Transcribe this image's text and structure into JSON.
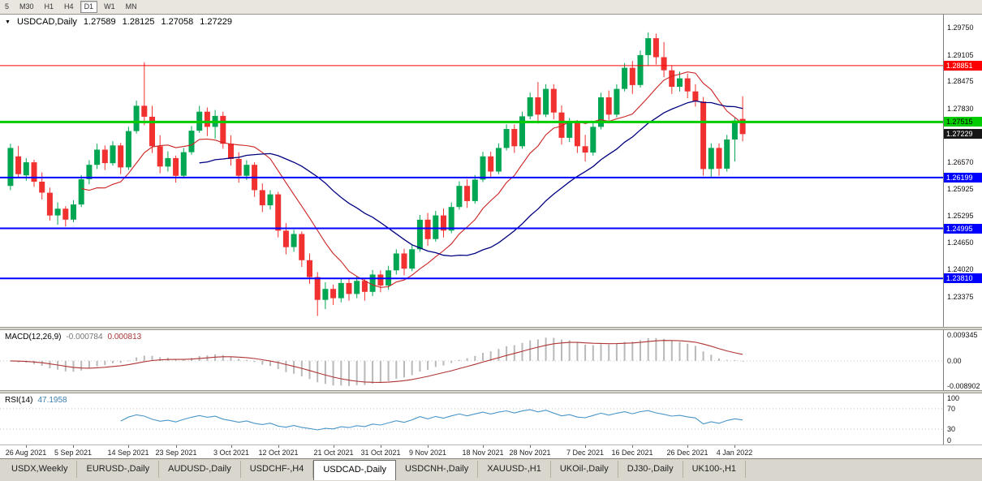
{
  "toolbar": {
    "timeframes": [
      "5",
      "M30",
      "H1",
      "H4",
      "D1",
      "W1",
      "MN"
    ],
    "active": "D1"
  },
  "chart_header": {
    "symbol_label": "USDCAD,Daily",
    "open": "1.27589",
    "high": "1.28125",
    "low": "1.27058",
    "close": "1.27229"
  },
  "chart_data": {
    "type": "candlestick",
    "symbol": "USDCAD",
    "timeframe": "Daily",
    "price": {
      "ylim": [
        1.2266,
        1.3006
      ],
      "axis_ticks": [
        1.2975,
        1.29105,
        1.28475,
        1.2783,
        1.2657,
        1.25925,
        1.25295,
        1.2465,
        1.2402,
        1.23375
      ],
      "bull_color": "#00a651",
      "bear_color": "#f13030",
      "ma_fast": {
        "period": 10,
        "color": "#cc2222"
      },
      "ma_slow": {
        "period": 25,
        "color": "#000080"
      },
      "levels": [
        {
          "value": 1.28851,
          "label": "1.28851",
          "color": "#ff0000",
          "text": "#ffffff",
          "width": 1
        },
        {
          "value": 1.27515,
          "label": "1.27515",
          "color": "#00cc00",
          "text": "#000000",
          "width": 3
        },
        {
          "value": 1.26199,
          "label": "1.26199",
          "color": "#0000ff",
          "text": "#ffffff",
          "width": 2
        },
        {
          "value": 1.24995,
          "label": "1.24995",
          "color": "#0000ff",
          "text": "#ffffff",
          "width": 2
        },
        {
          "value": 1.2381,
          "label": "1.23810",
          "color": "#0000ff",
          "text": "#ffffff",
          "width": 2
        }
      ],
      "current": {
        "value": 1.27229,
        "label": "1.27229",
        "bg": "#161616",
        "text": "#ffffff"
      },
      "candles": [
        [
          1.26,
          1.27,
          1.259,
          1.269
        ],
        [
          1.267,
          1.2695,
          1.2618,
          1.2628
        ],
        [
          1.2625,
          1.2666,
          1.2612,
          1.2656
        ],
        [
          1.2656,
          1.2662,
          1.2598,
          1.261
        ],
        [
          1.261,
          1.2632,
          1.2568,
          1.2584
        ],
        [
          1.2584,
          1.2596,
          1.2518,
          1.253
        ],
        [
          1.253,
          1.2561,
          1.2508,
          1.2546
        ],
        [
          1.2546,
          1.2552,
          1.2504,
          1.252
        ],
        [
          1.252,
          1.2566,
          1.2514,
          1.2556
        ],
        [
          1.2556,
          1.2626,
          1.255,
          1.2616
        ],
        [
          1.2616,
          1.2661,
          1.2604,
          1.265
        ],
        [
          1.265,
          1.27,
          1.264,
          1.2686
        ],
        [
          1.2686,
          1.2696,
          1.2638,
          1.2654
        ],
        [
          1.2654,
          1.2706,
          1.2648,
          1.2696
        ],
        [
          1.2696,
          1.2702,
          1.2628,
          1.2644
        ],
        [
          1.2644,
          1.274,
          1.2638,
          1.273
        ],
        [
          1.273,
          1.2802,
          1.2724,
          1.279
        ],
        [
          1.279,
          1.2893,
          1.2744,
          1.2764
        ],
        [
          1.2764,
          1.279,
          1.2678,
          1.2694
        ],
        [
          1.2694,
          1.272,
          1.263,
          1.2646
        ],
        [
          1.2646,
          1.2682,
          1.2634,
          1.2666
        ],
        [
          1.2666,
          1.2672,
          1.2608,
          1.2624
        ],
        [
          1.2624,
          1.269,
          1.2618,
          1.268
        ],
        [
          1.268,
          1.2742,
          1.2674,
          1.2731
        ],
        [
          1.2731,
          1.279,
          1.2726,
          1.2776
        ],
        [
          1.2776,
          1.2786,
          1.2718,
          1.274
        ],
        [
          1.274,
          1.278,
          1.2712,
          1.2766
        ],
        [
          1.2766,
          1.2776,
          1.2688,
          1.27
        ],
        [
          1.27,
          1.272,
          1.2648,
          1.2664
        ],
        [
          1.2664,
          1.268,
          1.2608,
          1.2624
        ],
        [
          1.2624,
          1.2661,
          1.2614,
          1.265
        ],
        [
          1.265,
          1.2656,
          1.2574,
          1.259
        ],
        [
          1.259,
          1.2606,
          1.2538,
          1.2554
        ],
        [
          1.2554,
          1.259,
          1.2544,
          1.258
        ],
        [
          1.258,
          1.2586,
          1.2478,
          1.2494
        ],
        [
          1.2494,
          1.2512,
          1.2438,
          1.2455
        ],
        [
          1.2455,
          1.2496,
          1.2444,
          1.2486
        ],
        [
          1.2486,
          1.2492,
          1.2408,
          1.2424
        ],
        [
          1.2424,
          1.244,
          1.2368,
          1.2384
        ],
        [
          1.2384,
          1.2396,
          1.2292,
          1.233
        ],
        [
          1.233,
          1.2372,
          1.2308,
          1.2356
        ],
        [
          1.2356,
          1.2366,
          1.2318,
          1.2334
        ],
        [
          1.2334,
          1.2381,
          1.2324,
          1.237
        ],
        [
          1.237,
          1.238,
          1.2328,
          1.2344
        ],
        [
          1.2344,
          1.2386,
          1.2334,
          1.2375
        ],
        [
          1.2375,
          1.2381,
          1.2328,
          1.2349
        ],
        [
          1.2349,
          1.2401,
          1.2339,
          1.239
        ],
        [
          1.239,
          1.24,
          1.2348,
          1.2364
        ],
        [
          1.2364,
          1.2411,
          1.2354,
          1.24
        ],
        [
          1.24,
          1.245,
          1.239,
          1.244
        ],
        [
          1.244,
          1.2451,
          1.2388,
          1.2404
        ],
        [
          1.2404,
          1.2461,
          1.2398,
          1.245
        ],
        [
          1.245,
          1.2531,
          1.2444,
          1.252
        ],
        [
          1.252,
          1.2536,
          1.2458,
          1.2474
        ],
        [
          1.2474,
          1.2541,
          1.2468,
          1.253
        ],
        [
          1.253,
          1.2546,
          1.2478,
          1.2494
        ],
        [
          1.2494,
          1.2561,
          1.2488,
          1.255
        ],
        [
          1.255,
          1.2611,
          1.2544,
          1.26
        ],
        [
          1.26,
          1.2616,
          1.2548,
          1.2564
        ],
        [
          1.2564,
          1.2626,
          1.2558,
          1.2615
        ],
        [
          1.2615,
          1.2681,
          1.2609,
          1.267
        ],
        [
          1.267,
          1.2681,
          1.2618,
          1.2634
        ],
        [
          1.2634,
          1.2701,
          1.2628,
          1.269
        ],
        [
          1.269,
          1.2746,
          1.2684,
          1.2735
        ],
        [
          1.2735,
          1.2746,
          1.2678,
          1.2694
        ],
        [
          1.2694,
          1.2776,
          1.2688,
          1.2765
        ],
        [
          1.2765,
          1.2821,
          1.2758,
          1.281
        ],
        [
          1.281,
          1.2846,
          1.2748,
          1.2769
        ],
        [
          1.2769,
          1.2841,
          1.2763,
          1.283
        ],
        [
          1.283,
          1.2841,
          1.2758,
          1.2774
        ],
        [
          1.2774,
          1.2791,
          1.2698,
          1.2714
        ],
        [
          1.2714,
          1.2761,
          1.2704,
          1.275
        ],
        [
          1.275,
          1.2756,
          1.2678,
          1.2694
        ],
        [
          1.2694,
          1.2721,
          1.2658,
          1.2679
        ],
        [
          1.2679,
          1.2751,
          1.2672,
          1.274
        ],
        [
          1.274,
          1.2821,
          1.2734,
          1.281
        ],
        [
          1.281,
          1.2826,
          1.2748,
          1.2769
        ],
        [
          1.2769,
          1.2841,
          1.2762,
          1.283
        ],
        [
          1.283,
          1.2891,
          1.2824,
          1.288
        ],
        [
          1.288,
          1.2896,
          1.2818,
          1.2839
        ],
        [
          1.2839,
          1.2921,
          1.2833,
          1.291
        ],
        [
          1.291,
          1.2964,
          1.2884,
          1.295
        ],
        [
          1.295,
          1.2961,
          1.2888,
          1.2905
        ],
        [
          1.2905,
          1.2941,
          1.2858,
          1.2874
        ],
        [
          1.2874,
          1.2886,
          1.2818,
          1.2835
        ],
        [
          1.2835,
          1.2871,
          1.2824,
          1.2855
        ],
        [
          1.2855,
          1.2866,
          1.2808,
          1.2824
        ],
        [
          1.2824,
          1.2841,
          1.2788,
          1.28
        ],
        [
          1.28,
          1.2811,
          1.2624,
          1.264
        ],
        [
          1.264,
          1.2701,
          1.2618,
          1.269
        ],
        [
          1.269,
          1.2701,
          1.2624,
          1.2641
        ],
        [
          1.2641,
          1.2721,
          1.2634,
          1.271
        ],
        [
          1.271,
          1.2761,
          1.2658,
          1.2755
        ],
        [
          1.27589,
          1.28125,
          1.27058,
          1.27229
        ]
      ]
    },
    "x_ticks": [
      {
        "i": 2,
        "label": "26 Aug 2021"
      },
      {
        "i": 8,
        "label": "5 Sep 2021"
      },
      {
        "i": 15,
        "label": "14 Sep 2021"
      },
      {
        "i": 21,
        "label": "23 Sep 2021"
      },
      {
        "i": 28,
        "label": "3 Oct 2021"
      },
      {
        "i": 34,
        "label": "12 Oct 2021"
      },
      {
        "i": 41,
        "label": "21 Oct 2021"
      },
      {
        "i": 47,
        "label": "31 Oct 2021"
      },
      {
        "i": 53,
        "label": "9 Nov 2021"
      },
      {
        "i": 60,
        "label": "18 Nov 2021"
      },
      {
        "i": 66,
        "label": "28 Nov 2021"
      },
      {
        "i": 73,
        "label": "7 Dec 2021"
      },
      {
        "i": 79,
        "label": "16 Dec 2021"
      },
      {
        "i": 86,
        "label": "26 Dec 2021"
      },
      {
        "i": 92,
        "label": "4 Jan 2022"
      }
    ],
    "macd": {
      "label": "MACD(12,26,9)",
      "value1": "-0.000784",
      "value2": "0.000813",
      "fast": 12,
      "slow": 26,
      "signal": 9,
      "ylim": [
        -0.0102,
        0.0107
      ],
      "axis_ticks": [
        {
          "v": 0.009345,
          "label": "0.009345"
        },
        {
          "v": 0,
          "label": "0.00"
        },
        {
          "v": -0.008902,
          "label": "-0.008902"
        }
      ],
      "hist_color": "#b9b9b9",
      "signal_color": "#b03333"
    },
    "rsi": {
      "label": "RSI(14)",
      "value": "47.1958",
      "period": 14,
      "ylim": [
        0,
        100
      ],
      "levels": [
        70,
        30
      ],
      "axis_ticks": [
        {
          "v": 100,
          "label": "100"
        },
        {
          "v": 70,
          "label": "70"
        },
        {
          "v": 30,
          "label": "30"
        },
        {
          "v": 0,
          "label": "0"
        }
      ],
      "color": "#4a96c8"
    }
  },
  "tabs": [
    "USDX,Weekly",
    "EURUSD-,Daily",
    "AUDUSD-,Daily",
    "USDCHF-,H4",
    "USDCAD-,Daily",
    "USDCNH-,Daily",
    "XAUUSD-,H1",
    "UKOil-,Daily",
    "DJ30-,Daily",
    "UK100-,H1"
  ],
  "active_tab": "USDCAD-,Daily"
}
